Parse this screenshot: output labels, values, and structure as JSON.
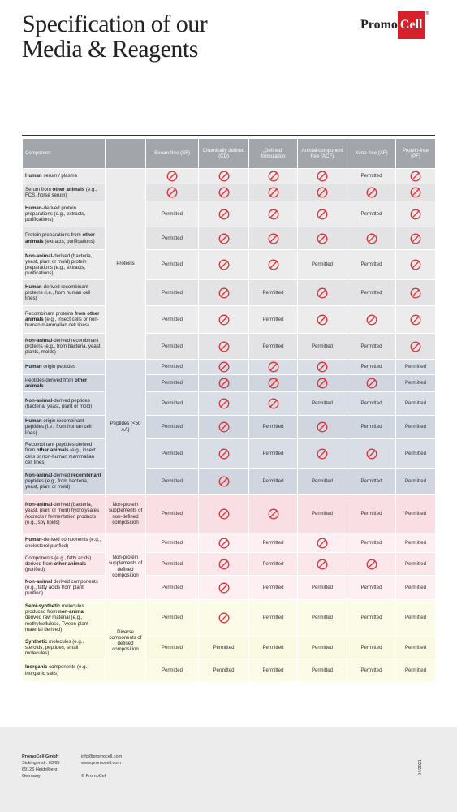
{
  "header": {
    "title_lines": [
      "Specification of our",
      "Media & Reagents"
    ],
    "logo": {
      "promo": "Promo",
      "cell": "Cell",
      "reg": "®"
    }
  },
  "table": {
    "component_header": "Component",
    "columns": [
      "Serum-free (SF)",
      "Chemically defined (CD)",
      "„Defined“ formulation",
      "Animal-component free (ACF)",
      "Xeno-free (XF)",
      "Protein-free (PF)"
    ],
    "groups": [
      {
        "label": "Proteins",
        "rows": [
          {
            "component": [
              {
                "b": "Human"
              },
              {
                "t": " serum / plasma"
              }
            ],
            "cells": [
              null,
              null,
              null,
              null,
              "Permitted",
              null
            ]
          },
          {
            "component": [
              {
                "t": "Serum from "
              },
              {
                "b": "other animals"
              },
              {
                "t": " (e.g., FCS, horse serum)"
              }
            ],
            "cells": [
              null,
              null,
              null,
              null,
              null,
              null
            ]
          },
          {
            "component": [
              {
                "b": "Human"
              },
              {
                "t": "-derived protein preparations (e.g., extracts, purifications)"
              }
            ],
            "cells": [
              "Permitted",
              null,
              null,
              null,
              "Permitted",
              null
            ]
          },
          {
            "component": [
              {
                "t": "Protein preparations from "
              },
              {
                "b": "other animals"
              },
              {
                "t": " (extracts, purifications)"
              }
            ],
            "cells": [
              "Permitted",
              null,
              null,
              null,
              null,
              null
            ]
          },
          {
            "component": [
              {
                "b": "Non-animal"
              },
              {
                "t": "-derived (bacteria, yeast, plant or mold) protein preparations (e.g., extracts, purifications)"
              }
            ],
            "cells": [
              "Permitted",
              null,
              null,
              "Permitted",
              "Permitted",
              null
            ]
          },
          {
            "component": [
              {
                "b": "Human"
              },
              {
                "t": "-derived recombinant proteins (i.e., from human cell lines)"
              }
            ],
            "cells": [
              "Permitted",
              null,
              "Permitted",
              null,
              "Permitted",
              null
            ]
          },
          {
            "component": [
              {
                "t": "Recombinant proteins "
              },
              {
                "b": "from other animals"
              },
              {
                "t": " (e.g., insect cells or non-human mammalian cell lines)"
              }
            ],
            "cells": [
              "Permitted",
              null,
              "Permitted",
              null,
              null,
              null
            ]
          },
          {
            "component": [
              {
                "b": "Non-animal"
              },
              {
                "t": "-derived recombinant proteins (e.g., from bacteria, yeast, plants, molds)"
              }
            ],
            "cells": [
              "Permitted",
              null,
              "Permitted",
              "Permitted",
              "Permitted",
              null
            ]
          }
        ]
      },
      {
        "label": "Peptides (<50 AA)",
        "rows": [
          {
            "component": [
              {
                "b": "Human"
              },
              {
                "t": " origin peptides"
              }
            ],
            "cells": [
              "Permitted",
              null,
              null,
              null,
              "Permitted",
              "Permitted"
            ]
          },
          {
            "component": [
              {
                "t": "Peptides derived from "
              },
              {
                "b": "other animals"
              }
            ],
            "cells": [
              "Permitted",
              null,
              null,
              null,
              null,
              "Permitted"
            ]
          },
          {
            "component": [
              {
                "b": "Non-animal"
              },
              {
                "t": "-derived peptides (bacteria, yeast, plant or mold)"
              }
            ],
            "cells": [
              "Permitted",
              null,
              null,
              "Permitted",
              "Permitted",
              "Permitted"
            ]
          },
          {
            "component": [
              {
                "b": "Human"
              },
              {
                "t": " origin recombinant peptides (i.e., from human cell lines)"
              }
            ],
            "cells": [
              "Permitted",
              null,
              "Permitted",
              null,
              "Permitted",
              "Permitted"
            ]
          },
          {
            "component": [
              {
                "t": "Recombinant peptides derived from "
              },
              {
                "b": "other animals"
              },
              {
                "t": " (e.g., insect cells or non-human mammalian cell lines)"
              }
            ],
            "cells": [
              "Permitted",
              null,
              "Permitted",
              null,
              null,
              "Permitted"
            ]
          },
          {
            "component": [
              {
                "b": "Non-animal"
              },
              {
                "t": "-derived "
              },
              {
                "b": "recombinant"
              },
              {
                "t": " peptides (e.g., from bacteria, yeast, plant or mold)"
              }
            ],
            "cells": [
              "Permitted",
              null,
              "Permitted",
              "Permitted",
              "Permitted",
              "Permitted"
            ]
          }
        ]
      },
      {
        "label": "Non-protein supplements of non-defined composition",
        "rows": [
          {
            "component": [
              {
                "b": "Non-animal"
              },
              {
                "t": "-derived (bacteria, yeast, plant or mold) hydrolysates /extracts / fermentation products (e.g., soy lipids)"
              }
            ],
            "cells": [
              "Permitted",
              null,
              null,
              "Permitted",
              "Permitted",
              "Permitted"
            ]
          }
        ]
      },
      {
        "label": "Non-protein supplements of defined composition",
        "rows": [
          {
            "component": [
              {
                "b": "Human"
              },
              {
                "t": "-derived components (e.g., cholesterol purified)"
              }
            ],
            "cells": [
              "Permitted",
              null,
              "Permitted",
              null,
              "Permitted",
              "Permitted"
            ]
          },
          {
            "component": [
              {
                "t": "Components (e.g., fatty acids) derived from "
              },
              {
                "b": "other animals"
              },
              {
                "t": " (purified)"
              }
            ],
            "cells": [
              "Permitted",
              null,
              "Permitted",
              null,
              null,
              "Permitted"
            ]
          },
          {
            "component": [
              {
                "b": "Non-animal"
              },
              {
                "t": " derived components (e.g., fatty acids from plant; purified)"
              }
            ],
            "cells": [
              "Permitted",
              null,
              "Permitted",
              "Permitted",
              "Permitted",
              "Permitted"
            ]
          }
        ]
      },
      {
        "label": "Diverse components of defined composition",
        "rows": [
          {
            "component": [
              {
                "b": "Semi-synthetic"
              },
              {
                "t": " molecules produced from "
              },
              {
                "b": "non-animal"
              },
              {
                "t": " derived raw material (e.g., methylcellulose, Tween plant-material derived)"
              }
            ],
            "cells": [
              "Permitted",
              null,
              "Permitted",
              "Permitted",
              "Permitted",
              "Permitted"
            ]
          },
          {
            "component": [
              {
                "b": "Synthetic"
              },
              {
                "t": " molecules (e.g., steroids, peptides, small molecules)"
              }
            ],
            "cells": [
              "Permitted",
              "Permitted",
              "Permitted",
              "Permitted",
              "Permitted",
              "Permitted"
            ]
          },
          {
            "component": [
              {
                "b": "Inorganic"
              },
              {
                "t": " components (e.g., inorganic salts)"
              }
            ],
            "cells": [
              "Permitted",
              "Permitted",
              "Permitted",
              "Permitted",
              "Permitted",
              "Permitted"
            ]
          }
        ]
      }
    ]
  },
  "footer": {
    "company": "PromoCell GmbH",
    "address": [
      "Sickingenstr. 63/65",
      "69126 Heidelberg",
      "Germany"
    ],
    "contact": [
      "info@promocell.com",
      "www.promocell.com"
    ],
    "copyright": "© PromoCell",
    "date": "04/2021"
  }
}
